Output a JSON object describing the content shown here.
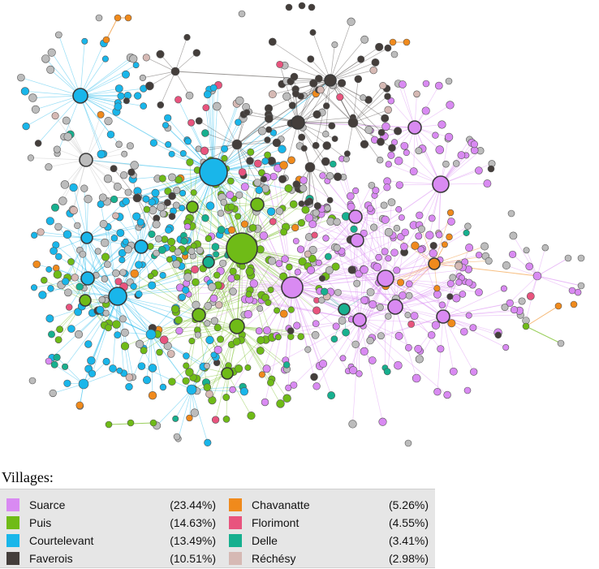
{
  "legend": {
    "title": "Villages:",
    "items": [
      {
        "label": "Suarce",
        "pct": "(23.44%)",
        "color": "#d98af2"
      },
      {
        "label": "Puis",
        "pct": "(14.63%)",
        "color": "#6fbb17"
      },
      {
        "label": "Courtelevant",
        "pct": "(13.49%)",
        "color": "#19b6ea"
      },
      {
        "label": "Faverois",
        "pct": "(10.51%)",
        "color": "#443e3b"
      },
      {
        "label": "Chavanatte",
        "pct": "(5.26%)",
        "color": "#f08a1c"
      },
      {
        "label": "Florimont",
        "pct": "(4.55%)",
        "color": "#e8547e"
      },
      {
        "label": "Delle",
        "pct": "(3.41%)",
        "color": "#17b08f"
      },
      {
        "label": "Réchésy",
        "pct": "(2.98%)",
        "color": "#d6b9b4"
      }
    ],
    "other_color": "#bcbcbc"
  }
}
